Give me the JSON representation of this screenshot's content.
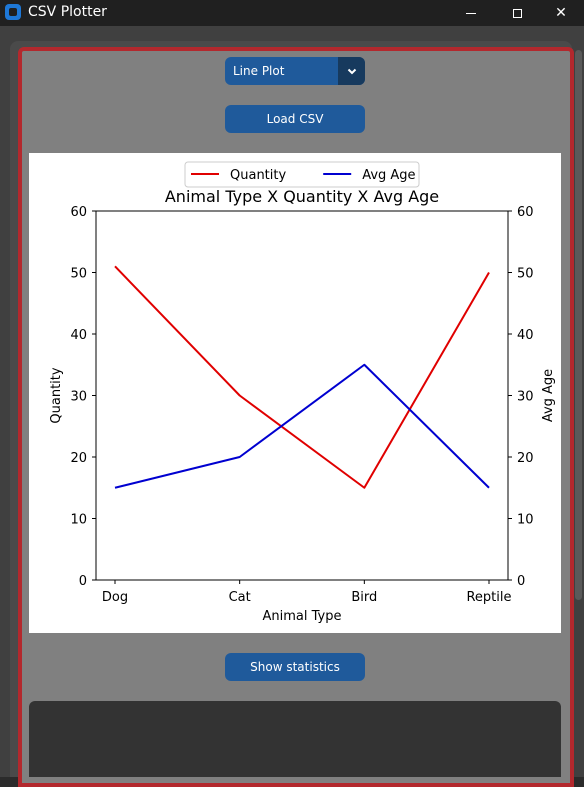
{
  "window": {
    "title": "CSV Plotter",
    "close_glyph": "✕"
  },
  "controls": {
    "plot_type": "Line Plot",
    "load_button": "Load CSV",
    "stats_button": "Show statistics"
  },
  "colors": {
    "accent": "#1f5a9b",
    "frame": "#b3282d"
  },
  "chart_data": {
    "type": "line",
    "title": "Animal Type X Quantity X Avg Age",
    "xlabel": "Animal Type",
    "ylabel": "Quantity",
    "y2label": "Avg Age",
    "categories": [
      "Dog",
      "Cat",
      "Bird",
      "Reptile"
    ],
    "ylim": [
      0,
      60
    ],
    "y2lim": [
      0,
      60
    ],
    "yticks": [
      0,
      10,
      20,
      30,
      40,
      50,
      60
    ],
    "grid": false,
    "legend_position": "top-center",
    "series": [
      {
        "name": "Quantity",
        "axis": "left",
        "color": "#e00000",
        "values": [
          51,
          30,
          15,
          50
        ]
      },
      {
        "name": "Avg Age",
        "axis": "right",
        "color": "#0000d0",
        "values": [
          15,
          20,
          35,
          15
        ]
      }
    ]
  }
}
